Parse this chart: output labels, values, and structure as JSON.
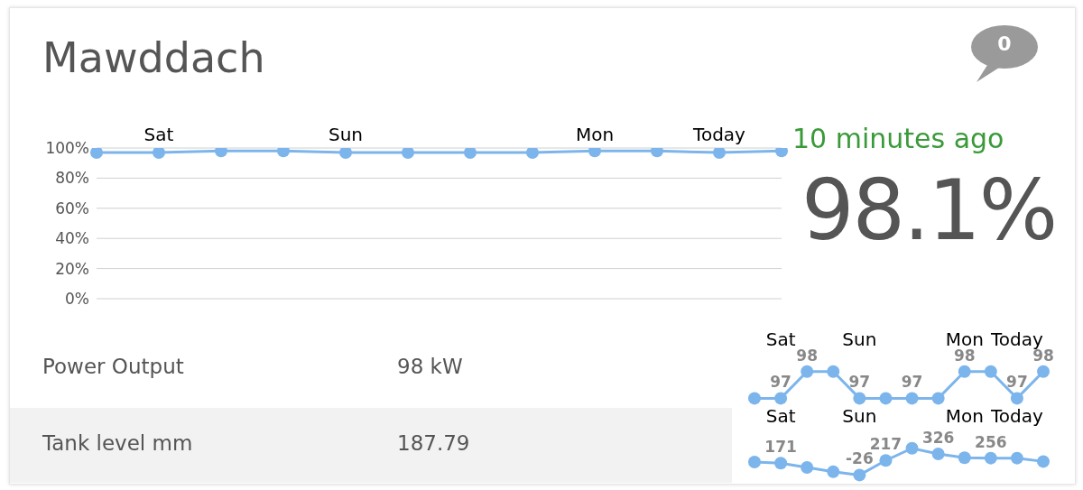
{
  "chart_data": [
    {
      "type": "line",
      "title": "Mawddach",
      "categories": [
        null,
        "Sat",
        null,
        null,
        "Sun",
        null,
        null,
        null,
        "Mon",
        null,
        "Today",
        null
      ],
      "ylim": [
        0,
        100
      ],
      "yticks": [
        {
          "value": 0,
          "label": "0%"
        },
        {
          "value": 20,
          "label": "20%"
        },
        {
          "value": 40,
          "label": "40%"
        },
        {
          "value": 60,
          "label": "60%"
        },
        {
          "value": 80,
          "label": "80%"
        },
        {
          "value": 100,
          "label": "100%"
        }
      ],
      "series": [
        {
          "color": "#7cb5ec",
          "values": [
            97,
            97,
            98,
            98,
            97,
            97,
            97,
            97,
            98,
            98,
            97,
            98
          ]
        }
      ],
      "grid": "y",
      "marker": "circle"
    },
    {
      "type": "other",
      "annotations": [
        "0",
        "10 minutes ago",
        "98.1%",
        "Power Output",
        "98 kW",
        "Tank level mm",
        "187.79"
      ]
    },
    {
      "type": "line",
      "categories": [
        null,
        "Sat",
        null,
        null,
        "Sun",
        null,
        null,
        null,
        "Mon",
        null,
        "Today",
        null
      ],
      "values": [
        97,
        97,
        98,
        98,
        97,
        97,
        97,
        97,
        98,
        98,
        97,
        98
      ],
      "value_labels": [
        null,
        "97",
        "98",
        null,
        "97",
        null,
        "97",
        null,
        "98",
        null,
        "97",
        "98"
      ],
      "color": "#7cb5ec",
      "tick_labels": "x",
      "marker": "circle"
    },
    {
      "type": "line",
      "categories": [
        null,
        "Sat",
        null,
        null,
        "Sun",
        null,
        null,
        null,
        "Mon",
        null,
        "Today",
        null
      ],
      "values": [
        190,
        171,
        100,
        30,
        -26,
        217,
        420,
        326,
        262,
        256,
        256,
        200
      ],
      "value_labels": [
        null,
        "171",
        null,
        null,
        "-26",
        "217",
        null,
        "326",
        null,
        "256",
        null,
        null
      ],
      "color": "#7cb5ec",
      "tick_labels": "x",
      "marker": "circle"
    }
  ]
}
